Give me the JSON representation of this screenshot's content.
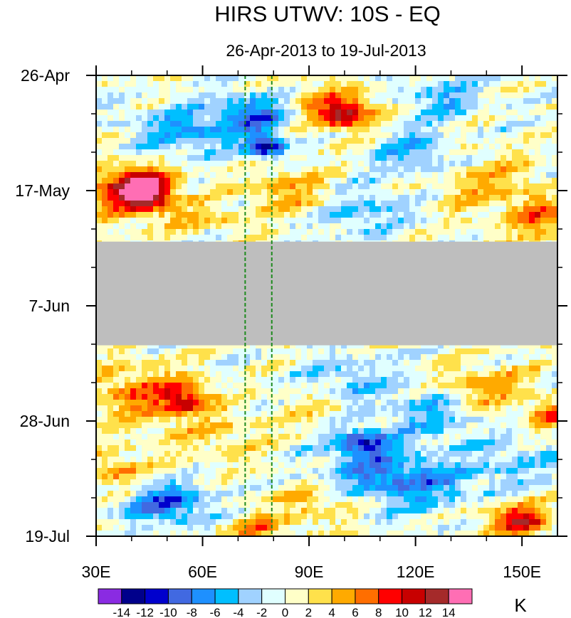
{
  "chart_data": {
    "type": "heatmap",
    "title": "HIRS UTWV: 10S - EQ",
    "subtitle": "26-Apr-2013 to 19-Jul-2013",
    "x_axis": {
      "range": [
        30,
        160
      ],
      "ticks": [
        30,
        60,
        90,
        120,
        150
      ],
      "tick_labels": [
        "30E",
        "60E",
        "90E",
        "120E",
        "150E"
      ],
      "minor_ticks": [
        40,
        50,
        70,
        80,
        100,
        110,
        130,
        140
      ]
    },
    "y_axis": {
      "range_days": [
        0,
        84
      ],
      "ticks": [
        0,
        21,
        42,
        63,
        84
      ],
      "tick_labels": [
        "26-Apr",
        "17-May",
        "7-Jun",
        "28-Jun",
        "19-Jul"
      ],
      "minor_ticks": [
        7,
        14,
        28,
        35,
        49,
        56,
        70,
        77
      ],
      "direction": "top-to-bottom"
    },
    "reference_lines": {
      "longitudes": [
        72,
        79.5
      ],
      "style": "dashed",
      "color": "#1e8a1e"
    },
    "missing_data": {
      "day_range": [
        30.3,
        49.2
      ],
      "color": "#bebebe"
    },
    "colorbar": {
      "unit": "K",
      "labels": [
        "-14",
        "-12",
        "-10",
        "-8",
        "-6",
        "-4",
        "-2",
        "0",
        "2",
        "4",
        "6",
        "8",
        "10",
        "12",
        "14"
      ],
      "levels": [
        -14,
        -12,
        -10,
        -8,
        -6,
        -4,
        -2,
        0,
        2,
        4,
        6,
        8,
        10,
        12,
        14
      ],
      "colors": [
        "#8a2be2",
        "#00008b",
        "#0000cd",
        "#4169e1",
        "#1e90ff",
        "#00bfff",
        "#a0d2ff",
        "#e0ffff",
        "#ffffc8",
        "#ffe14b",
        "#ffaa00",
        "#ff6e00",
        "#ff0000",
        "#c80000",
        "#a52a2a",
        "#ff6eb4"
      ]
    },
    "features": [
      {
        "lon": 44,
        "day": 21,
        "value": 14,
        "slon": 5,
        "sday": 2.2
      },
      {
        "lon": 38,
        "day": 21,
        "value": 8,
        "slon": 9,
        "sday": 3.5
      },
      {
        "lon": 100,
        "day": 7,
        "value": 11,
        "slon": 5,
        "sday": 1.8
      },
      {
        "lon": 95,
        "day": 5,
        "value": 4,
        "slon": 10,
        "sday": 3
      },
      {
        "lon": 78,
        "day": 13,
        "value": -12,
        "slon": 4,
        "sday": 1.5
      },
      {
        "lon": 75,
        "day": 7,
        "value": -9,
        "slon": 7,
        "sday": 2.5
      },
      {
        "lon": 55,
        "day": 10,
        "value": -6,
        "slon": 10,
        "sday": 3
      },
      {
        "lon": 128,
        "day": 4,
        "value": -5,
        "slon": 8,
        "sday": 2.5
      },
      {
        "lon": 120,
        "day": 14,
        "value": -5,
        "slon": 8,
        "sday": 3
      },
      {
        "lon": 85,
        "day": 21,
        "value": 5,
        "slon": 8,
        "sday": 3
      },
      {
        "lon": 105,
        "day": 25,
        "value": -4,
        "slon": 10,
        "sday": 3
      },
      {
        "lon": 140,
        "day": 20,
        "value": 4,
        "slon": 10,
        "sday": 4
      },
      {
        "lon": 155,
        "day": 26,
        "value": 6,
        "slon": 6,
        "sday": 3
      },
      {
        "lon": 60,
        "day": 26,
        "value": 3,
        "slon": 10,
        "sday": 2
      },
      {
        "lon": 55,
        "day": 59,
        "value": 9,
        "slon": 5,
        "sday": 2
      },
      {
        "lon": 42,
        "day": 58,
        "value": 6,
        "slon": 10,
        "sday": 4
      },
      {
        "lon": 35,
        "day": 72,
        "value": 5,
        "slon": 6,
        "sday": 2.5
      },
      {
        "lon": 50,
        "day": 78,
        "value": -9,
        "slon": 8,
        "sday": 2.5
      },
      {
        "lon": 75,
        "day": 83,
        "value": 6,
        "slon": 6,
        "sday": 2
      },
      {
        "lon": 105,
        "day": 67,
        "value": -10,
        "slon": 6,
        "sday": 2
      },
      {
        "lon": 110,
        "day": 73,
        "value": -7,
        "slon": 12,
        "sday": 3
      },
      {
        "lon": 100,
        "day": 56,
        "value": -4,
        "slon": 10,
        "sday": 3
      },
      {
        "lon": 125,
        "day": 62,
        "value": -5,
        "slon": 8,
        "sday": 3
      },
      {
        "lon": 140,
        "day": 57,
        "value": 5,
        "slon": 8,
        "sday": 3
      },
      {
        "lon": 158,
        "day": 62,
        "value": 7,
        "slon": 4,
        "sday": 2
      },
      {
        "lon": 150,
        "day": 81,
        "value": 9,
        "slon": 5,
        "sday": 1.6
      },
      {
        "lon": 142,
        "day": 80,
        "value": 4,
        "slon": 10,
        "sday": 3
      },
      {
        "lon": 90,
        "day": 78,
        "value": 4,
        "slon": 8,
        "sday": 3
      },
      {
        "lon": 130,
        "day": 76,
        "value": -4,
        "slon": 12,
        "sday": 4
      },
      {
        "lon": 65,
        "day": 66,
        "value": 3,
        "slon": 10,
        "sday": 3
      },
      {
        "lon": 150,
        "day": 70,
        "value": -3,
        "slon": 10,
        "sday": 3
      },
      {
        "lon": 90,
        "day": 60,
        "value": 3,
        "slon": 8,
        "sday": 2.5
      }
    ]
  }
}
